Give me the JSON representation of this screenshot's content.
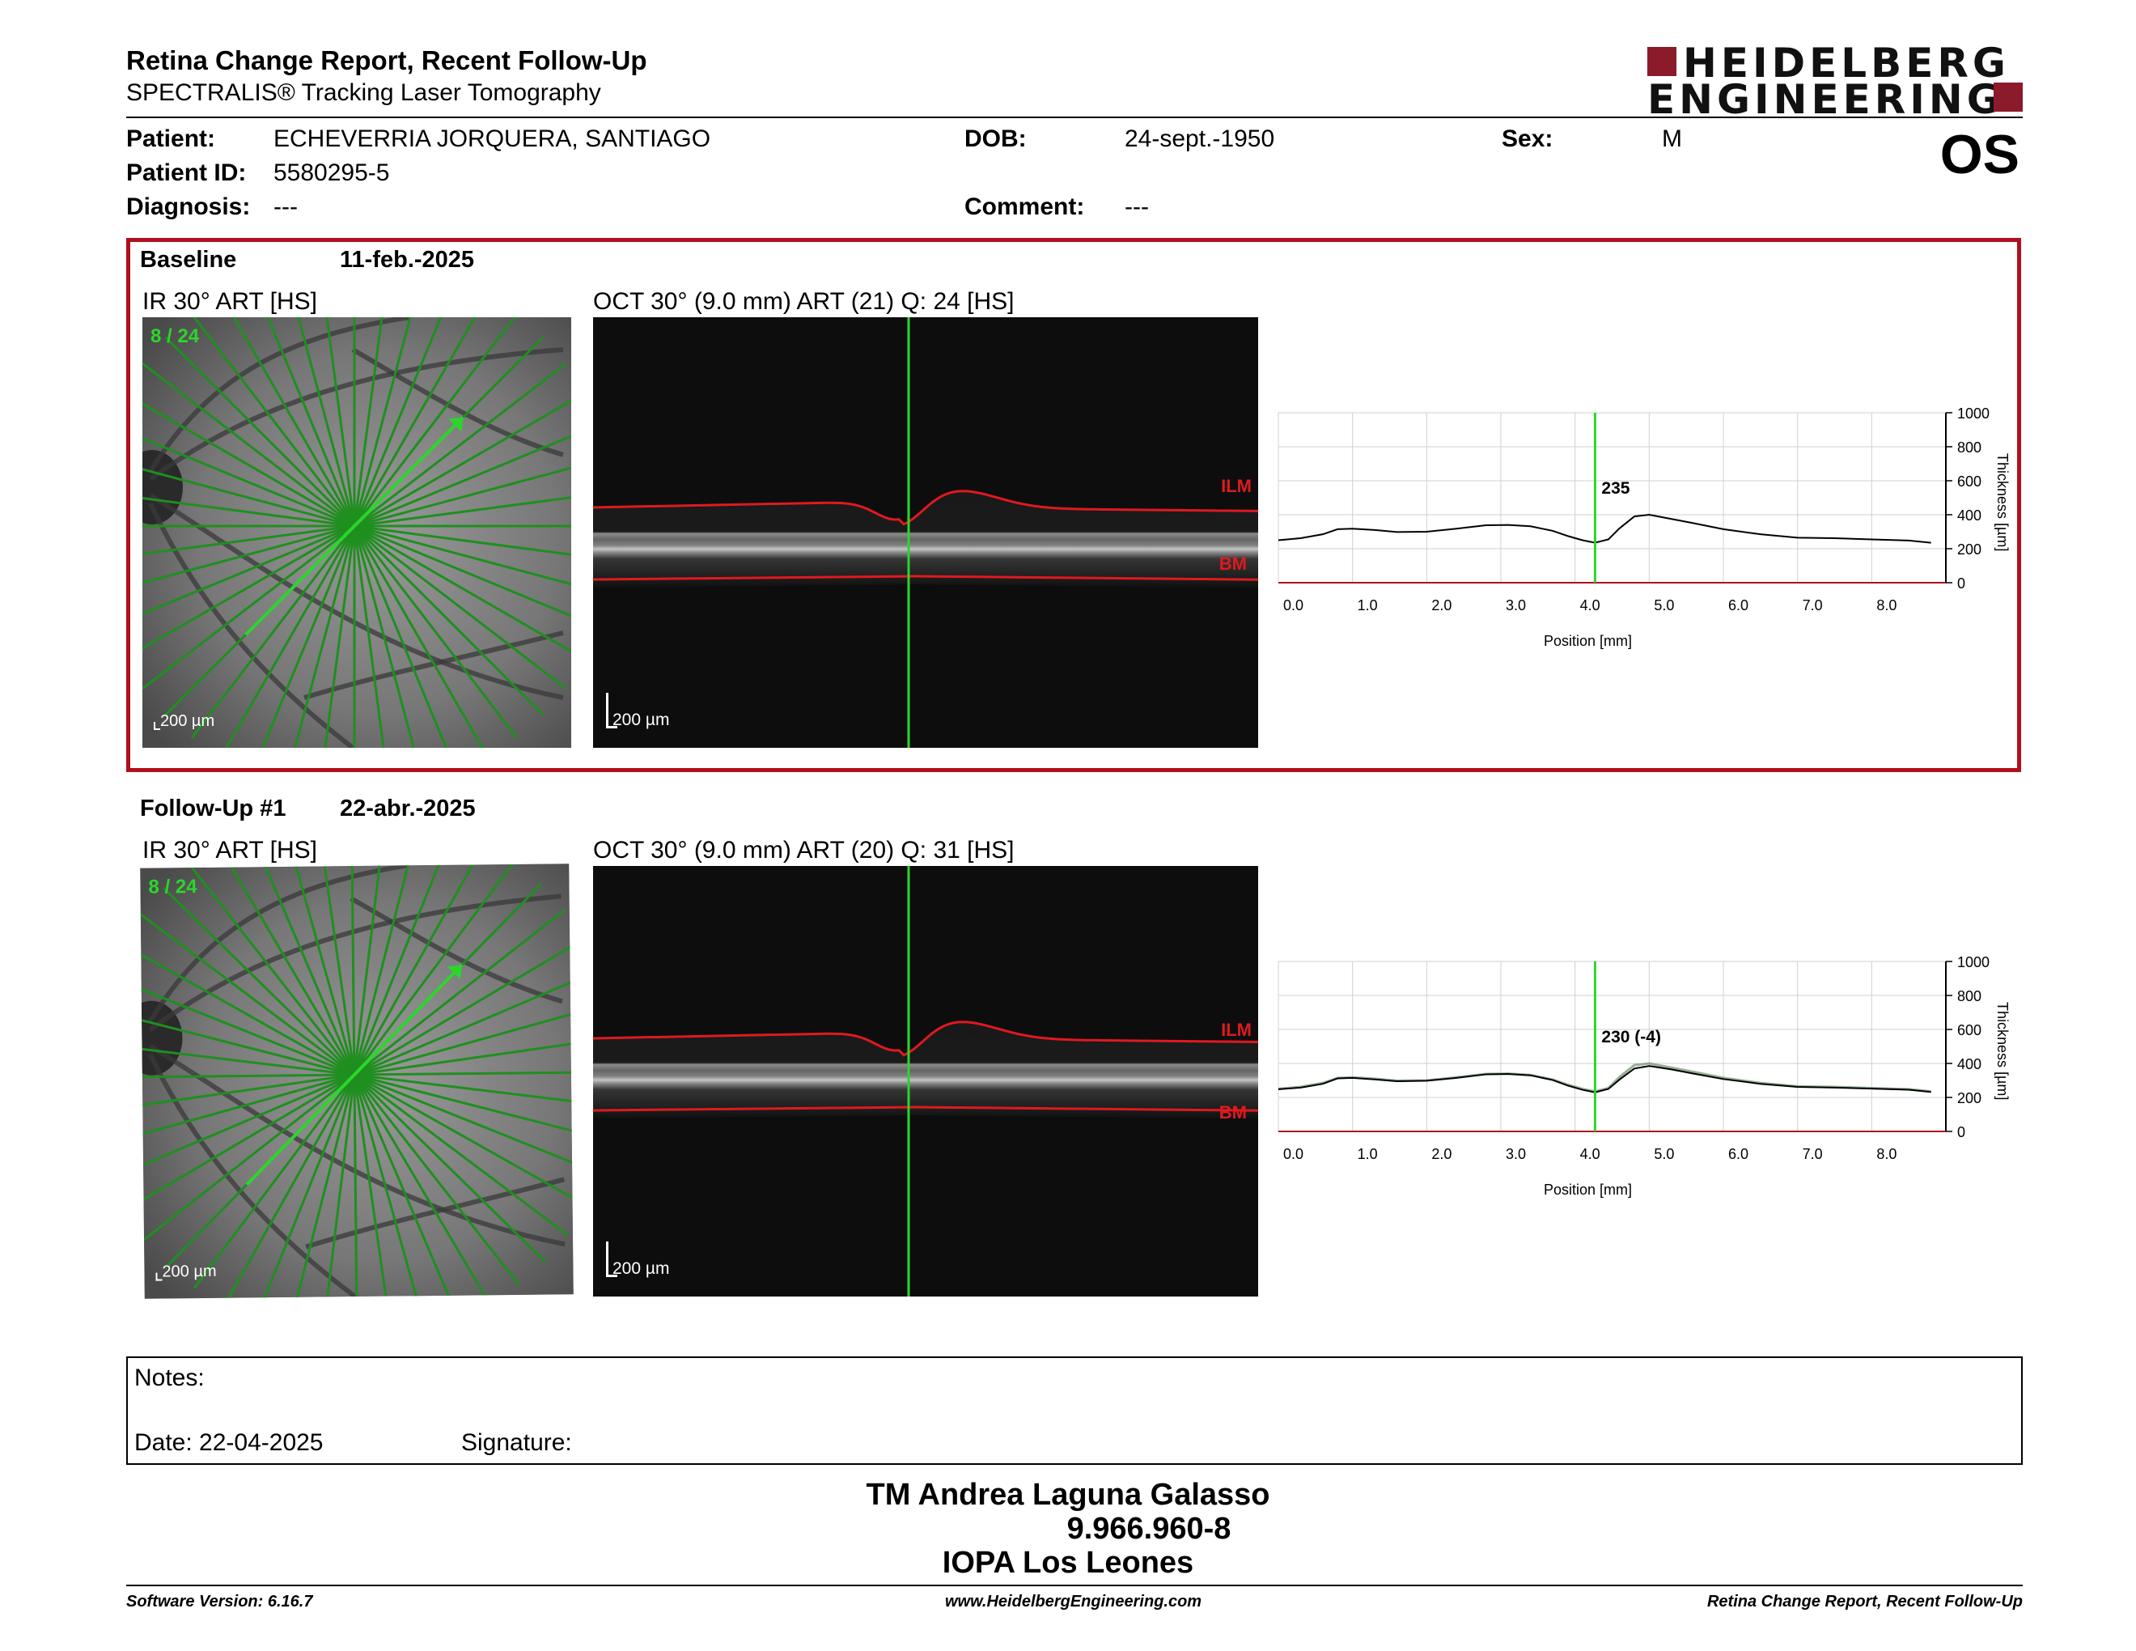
{
  "header": {
    "title": "Retina Change Report, Recent Follow-Up",
    "subtitle": "SPECTRALIS® Tracking Laser Tomography",
    "logo_line1": "HEIDELBERG",
    "logo_line2": "ENGINEERING",
    "eye": "OS"
  },
  "patient": {
    "patient_label": "Patient:",
    "patient_value": "ECHEVERRIA JORQUERA, SANTIAGO",
    "id_label": "Patient ID:",
    "id_value": "5580295-5",
    "diagnosis_label": "Diagnosis:",
    "diagnosis_value": "---",
    "dob_label": "DOB:",
    "dob_value": "24-sept.-1950",
    "comment_label": "Comment:",
    "comment_value": "---",
    "sex_label": "Sex:",
    "sex_value": "M"
  },
  "exams": [
    {
      "label": "Baseline",
      "date": "11-feb.-2025",
      "ir_caption": "IR 30° ART [HS]",
      "ir_counter": "8 / 24",
      "ir_scale": "200 µm",
      "oct_caption": "OCT 30° (9.0 mm) ART (21) Q: 24 [HS]",
      "oct_scale": "200 µm",
      "ilm_label": "ILM",
      "bm_label": "BM",
      "marker_value": "235"
    },
    {
      "label": "Follow-Up #1",
      "date": "22-abr.-2025",
      "ir_caption": "IR 30° ART [HS]",
      "ir_counter": "8 / 24",
      "ir_scale": "200 µm",
      "oct_caption": "OCT 30° (9.0 mm) ART (20) Q: 31 [HS]",
      "oct_scale": "200 µm",
      "ilm_label": "ILM",
      "bm_label": "BM",
      "marker_value": "230 (-4)"
    }
  ],
  "chart_data": [
    {
      "type": "line",
      "xlabel": "Position [mm]",
      "ylabel": "Thickness [µm]",
      "xlim": [
        0,
        9.0
      ],
      "ylim": [
        0,
        1000
      ],
      "x_ticks": [
        "0.0",
        "1.0",
        "2.0",
        "3.0",
        "4.0",
        "5.0",
        "6.0",
        "7.0",
        "8.0"
      ],
      "y_ticks": [
        "0",
        "200",
        "400",
        "600",
        "800",
        "1000"
      ],
      "marker_x": 4.27,
      "marker_label": "235",
      "series": [
        {
          "x": [
            0.0,
            0.3,
            0.6,
            0.8,
            1.0,
            1.3,
            1.6,
            2.0,
            2.4,
            2.8,
            3.1,
            3.4,
            3.7,
            3.9,
            4.1,
            4.27,
            4.45,
            4.6,
            4.8,
            5.0,
            5.3,
            5.6,
            6.0,
            6.5,
            7.0,
            7.5,
            8.0,
            8.5,
            8.8
          ],
          "y": [
            250,
            262,
            285,
            315,
            318,
            310,
            298,
            300,
            318,
            338,
            340,
            332,
            305,
            275,
            250,
            235,
            255,
            320,
            390,
            400,
            375,
            350,
            315,
            285,
            265,
            262,
            255,
            248,
            235
          ]
        }
      ]
    },
    {
      "type": "line",
      "xlabel": "Position [mm]",
      "ylabel": "Thickness [µm]",
      "xlim": [
        0,
        9.0
      ],
      "ylim": [
        0,
        1000
      ],
      "x_ticks": [
        "0.0",
        "1.0",
        "2.0",
        "3.0",
        "4.0",
        "5.0",
        "6.0",
        "7.0",
        "8.0"
      ],
      "y_ticks": [
        "0",
        "200",
        "400",
        "600",
        "800",
        "1000"
      ],
      "marker_x": 4.27,
      "marker_label": "230 (-4)",
      "series": [
        {
          "x": [
            0.0,
            0.3,
            0.6,
            0.8,
            1.0,
            1.3,
            1.6,
            2.0,
            2.4,
            2.8,
            3.1,
            3.4,
            3.7,
            3.9,
            4.1,
            4.27,
            4.45,
            4.6,
            4.8,
            5.0,
            5.3,
            5.6,
            6.0,
            6.5,
            7.0,
            7.5,
            8.0,
            8.5,
            8.8
          ],
          "y": [
            248,
            258,
            280,
            312,
            315,
            306,
            295,
            298,
            315,
            336,
            338,
            330,
            302,
            270,
            245,
            230,
            250,
            305,
            370,
            385,
            365,
            340,
            308,
            280,
            262,
            258,
            252,
            245,
            232
          ]
        },
        {
          "x": [
            0.0,
            0.3,
            0.6,
            0.8,
            1.0,
            1.3,
            1.6,
            2.0,
            2.4,
            2.8,
            3.1,
            3.4,
            3.7,
            3.9,
            4.1,
            4.27,
            4.45,
            4.6,
            4.8,
            5.0,
            5.3,
            5.6,
            6.0,
            6.5,
            7.0,
            7.5,
            8.0,
            8.5,
            8.8
          ],
          "y": [
            250,
            262,
            285,
            315,
            318,
            310,
            298,
            300,
            318,
            338,
            340,
            332,
            305,
            275,
            250,
            235,
            255,
            320,
            390,
            400,
            375,
            350,
            315,
            285,
            265,
            262,
            255,
            248,
            235
          ]
        }
      ]
    }
  ],
  "notes": {
    "label": "Notes:",
    "date_label": "Date: 22-04-2025",
    "signature_label": "Signature:"
  },
  "signature": {
    "name": "TM Andrea Laguna Galasso",
    "id": "9.966.960-8",
    "institution": "IOPA Los Leones"
  },
  "footer": {
    "version": "Software Version: 6.16.7",
    "website": "www.HeidelbergEngineering.com",
    "report": "Retina Change Report, Recent Follow-Up"
  },
  "colors": {
    "accent_red": "#b0101d",
    "logo_red": "#8b1a2b",
    "scan_green": "#2bd62b",
    "layer_red": "#e0191f"
  }
}
